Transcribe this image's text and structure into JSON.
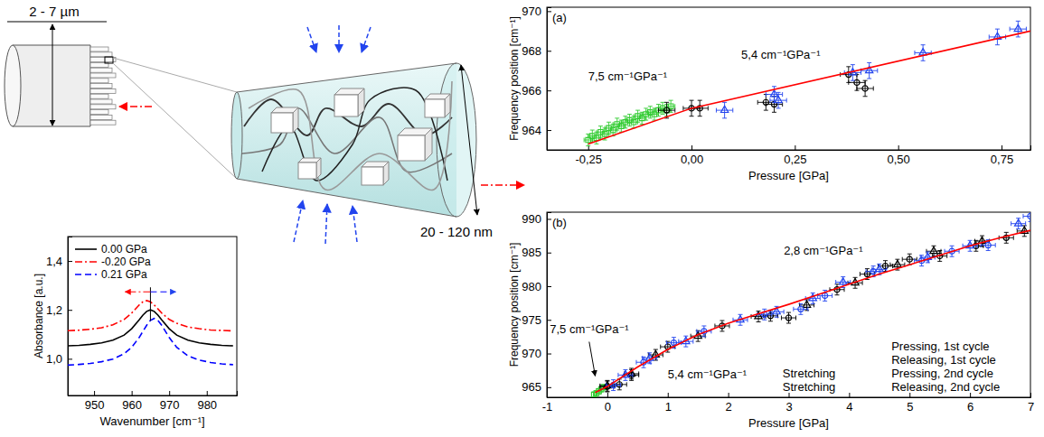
{
  "diagram": {
    "labels": [
      "2 - 7 µm",
      "20 - 120 nm"
    ]
  },
  "chart_data": [
    {
      "type": "line",
      "x_label": "Wavenumber [cm⁻¹]",
      "y_label": "Absorbance [a.u.]",
      "x": [
        943,
        946,
        949,
        952,
        955,
        958,
        960,
        962,
        963,
        964,
        965,
        966,
        967,
        968,
        970,
        972,
        975,
        978,
        981,
        984,
        987
      ],
      "xlim": [
        943,
        988
      ],
      "ylim": [
        0.85,
        1.5
      ],
      "xticks": [
        950,
        960,
        970,
        980
      ],
      "yticks": [
        {
          "value": 1.0,
          "label": "1,0"
        },
        {
          "value": 1.2,
          "label": "1,2"
        },
        {
          "value": 1.4,
          "label": "1,4"
        }
      ],
      "legend": "upper left",
      "grid": false,
      "series": [
        {
          "name": "0.00 GPa",
          "color": "#000000",
          "line_style": "solid",
          "values": [
            1.053,
            1.055,
            1.059,
            1.065,
            1.076,
            1.097,
            1.123,
            1.159,
            1.179,
            1.194,
            1.2,
            1.194,
            1.179,
            1.159,
            1.123,
            1.097,
            1.076,
            1.065,
            1.059,
            1.055,
            1.053
          ]
        },
        {
          "name": "-0.20 GPa",
          "color": "#ff0000",
          "line_style": "dashdot",
          "values": [
            1.115,
            1.117,
            1.121,
            1.127,
            1.139,
            1.161,
            1.187,
            1.22,
            1.233,
            1.238,
            1.233,
            1.22,
            1.204,
            1.187,
            1.161,
            1.145,
            1.13,
            1.123,
            1.118,
            1.116,
            1.114
          ]
        },
        {
          "name": "0.21 GPa",
          "color": "#0000ff",
          "line_style": "dashed",
          "values": [
            0.974,
            0.977,
            0.981,
            0.988,
            0.999,
            1.021,
            1.047,
            1.087,
            1.112,
            1.137,
            1.157,
            1.165,
            1.157,
            1.137,
            1.087,
            1.047,
            1.012,
            0.995,
            0.985,
            0.979,
            0.976
          ]
        }
      ]
    },
    {
      "type": "scatter",
      "title": "(a)",
      "x_label": "Pressure [GPa]",
      "y_label": "Frequency position [cm⁻¹]",
      "xlim": [
        -0.35,
        0.82
      ],
      "ylim": [
        963,
        970.2
      ],
      "xticks": [
        {
          "value": -0.25,
          "label": "-0,25"
        },
        {
          "value": 0,
          "label": "0,00"
        },
        {
          "value": 0.25,
          "label": "0,25"
        },
        {
          "value": 0.5,
          "label": "0,50"
        },
        {
          "value": 0.75,
          "label": "0,75"
        }
      ],
      "yticks": [
        964,
        966,
        968,
        970
      ],
      "grid": false,
      "annotations": [
        "7,5 cm⁻¹GPa⁻¹",
        "5,4 cm⁻¹GPa⁻¹"
      ],
      "series": [
        {
          "type": "scatter",
          "color": "#33cc33",
          "marker": "square",
          "x": [
            -0.25,
            -0.24,
            -0.23,
            -0.22,
            -0.21,
            -0.2,
            -0.19,
            -0.18,
            -0.17,
            -0.16,
            -0.15,
            -0.14,
            -0.13,
            -0.12,
            -0.11,
            -0.1,
            -0.09,
            -0.08,
            -0.07,
            -0.06,
            -0.05
          ],
          "values": [
            963.5,
            963.7,
            963.6,
            963.9,
            963.8,
            964.1,
            964.0,
            964.3,
            964.2,
            964.4,
            964.5,
            964.4,
            964.7,
            964.6,
            964.8,
            964.9,
            964.8,
            965.0,
            965.1,
            965.0,
            965.2
          ],
          "errors": [
            0.3,
            0.3,
            0.3,
            0.3,
            0.3,
            0.3,
            0.3,
            0.3,
            0.3,
            0.3,
            0.3,
            0.3,
            0.3,
            0.3,
            0.3,
            0.3,
            0.3,
            0.3,
            0.3,
            0.3,
            0.3
          ],
          "x_errors": [
            0.01,
            0.01,
            0.01,
            0.01,
            0.01,
            0.01,
            0.01,
            0.01,
            0.01,
            0.01,
            0.01,
            0.01,
            0.01,
            0.01,
            0.01,
            0.01,
            0.01,
            0.01,
            0.01,
            0.01,
            0.01
          ]
        },
        {
          "type": "scatter",
          "color": "#000000",
          "marker": "circle",
          "x": [
            -0.06,
            0.0,
            0.02,
            0.18,
            0.2,
            0.38,
            0.4,
            0.42
          ],
          "values": [
            965.0,
            965.1,
            965.1,
            965.4,
            965.3,
            966.8,
            966.4,
            966.1
          ],
          "errors": [
            0.4,
            0.4,
            0.4,
            0.4,
            0.4,
            0.4,
            0.4,
            0.4
          ],
          "x_errors": [
            0.02,
            0.02,
            0.02,
            0.02,
            0.02,
            0.02,
            0.02,
            0.02
          ]
        },
        {
          "type": "scatter",
          "color": "#2244ee",
          "marker": "triangle",
          "x": [
            0.08,
            0.2,
            0.21,
            0.39,
            0.43,
            0.56,
            0.74,
            0.79
          ],
          "values": [
            965.0,
            965.8,
            965.5,
            966.9,
            967.0,
            967.9,
            968.7,
            969.1
          ],
          "errors": [
            0.4,
            0.4,
            0.4,
            0.4,
            0.4,
            0.4,
            0.4,
            0.4
          ],
          "x_errors": [
            0.02,
            0.02,
            0.02,
            0.02,
            0.02,
            0.02,
            0.02,
            0.02
          ]
        },
        {
          "type": "line",
          "color": "#ff0000",
          "line_style": "solid",
          "x": [
            -0.25,
            0,
            0.82
          ],
          "values": [
            963.3,
            965.1,
            969.0
          ]
        }
      ]
    },
    {
      "type": "scatter",
      "title": "(b)",
      "x_label": "Pressure [GPa]",
      "y_label": "Frequency position [cm⁻¹]",
      "xlim": [
        -1,
        7
      ],
      "ylim": [
        963.5,
        991
      ],
      "xticks": [
        -1,
        0,
        1,
        2,
        3,
        4,
        5,
        6,
        7
      ],
      "yticks": [
        965,
        970,
        975,
        980,
        985,
        990
      ],
      "grid": false,
      "annotations": [
        "2,8 cm⁻¹GPa⁻¹",
        "7,5 cm⁻¹GPa⁻¹",
        "5,4 cm⁻¹GPa⁻¹",
        "Pressing, 1st cycle",
        "Releasing, 1st cycle",
        "Pressing, 2nd cycle",
        "Releasing, 2nd cycle",
        "Stretching",
        "Stretching"
      ],
      "series": [
        {
          "type": "scatter",
          "color": "#33cc33",
          "marker": "square",
          "x": [
            -0.22,
            -0.18,
            -0.14,
            -0.1,
            -0.06
          ],
          "values": [
            963.9,
            964.1,
            964.4,
            964.7,
            965.0
          ],
          "errors": [
            0.4,
            0.4,
            0.4,
            0.4,
            0.4
          ],
          "x_errors": [
            0.01,
            0.01,
            0.01,
            0.01,
            0.01
          ]
        },
        {
          "type": "scatter",
          "color": "#000000",
          "marker": "circle",
          "x": [
            0,
            0.2,
            0.4,
            1.0,
            1.9,
            2.7,
            3.0,
            3.8,
            4.3,
            4.6,
            5.0,
            5.5,
            6.1,
            6.6
          ],
          "values": [
            965.1,
            965.4,
            966.8,
            971.0,
            974.1,
            975.6,
            975.3,
            979.5,
            981.8,
            983.0,
            984.0,
            984.5,
            986.0,
            987.2
          ],
          "errors": [
            0.8,
            0.8,
            0.8,
            0.8,
            0.8,
            0.8,
            0.8,
            0.8,
            0.8,
            0.8,
            0.8,
            0.8,
            0.8,
            0.8
          ],
          "x_errors": [
            0.12,
            0.12,
            0.12,
            0.12,
            0.12,
            0.12,
            0.12,
            0.12,
            0.12,
            0.12,
            0.12,
            0.12,
            0.12,
            0.12
          ]
        },
        {
          "type": "scatter",
          "color": "#000000",
          "marker": "triangle",
          "x": [
            6.9,
            6.2,
            5.4,
            4.8,
            4.1,
            3.3,
            2.5,
            1.5,
            0.8,
            0.4,
            0.0
          ],
          "values": [
            988.2,
            986.7,
            985.2,
            983.2,
            980.5,
            977.2,
            975.5,
            972.6,
            969.8,
            967.0,
            965.2
          ],
          "errors": [
            0.8,
            0.8,
            0.8,
            0.8,
            0.8,
            0.8,
            0.8,
            0.8,
            0.8,
            0.8,
            0.8
          ],
          "x_errors": [
            0.12,
            0.12,
            0.12,
            0.12,
            0.12,
            0.12,
            0.12,
            0.12,
            0.12,
            0.12,
            0.12
          ]
        },
        {
          "type": "scatter",
          "color": "#2244ee",
          "marker": "circle",
          "x": [
            0.1,
            0.6,
            1.1,
            1.6,
            2.6,
            3.2,
            3.6,
            4.4,
            5.2,
            5.7,
            6.3,
            7.0
          ],
          "values": [
            965.3,
            968.7,
            971.6,
            973.3,
            975.8,
            976.6,
            978.6,
            982.2,
            983.8,
            985.2,
            986.1,
            990.4
          ],
          "errors": [
            0.8,
            0.8,
            0.8,
            0.8,
            0.8,
            0.8,
            0.8,
            0.8,
            0.8,
            0.8,
            0.8,
            0.8
          ],
          "x_errors": [
            0.12,
            0.12,
            0.12,
            0.12,
            0.12,
            0.12,
            0.12,
            0.12,
            0.12,
            0.12,
            0.12,
            0.12
          ]
        },
        {
          "type": "scatter",
          "color": "#2244ee",
          "marker": "triangle",
          "x": [
            6.8,
            6.0,
            5.3,
            4.5,
            3.9,
            3.4,
            2.8,
            2.2,
            1.3,
            0.7,
            0.3
          ],
          "values": [
            989.3,
            986.0,
            984.3,
            982.5,
            980.6,
            978.2,
            976.2,
            975.0,
            971.8,
            969.3,
            966.8
          ],
          "errors": [
            0.8,
            0.8,
            0.8,
            0.8,
            0.8,
            0.8,
            0.8,
            0.8,
            0.8,
            0.8,
            0.8
          ],
          "x_errors": [
            0.12,
            0.12,
            0.12,
            0.12,
            0.12,
            0.12,
            0.12,
            0.12,
            0.12,
            0.12,
            0.12
          ]
        },
        {
          "type": "line",
          "color": "#ff0000",
          "line_style": "solid",
          "x": [
            -0.2,
            0,
            0.5,
            1,
            1.5,
            2,
            2.5,
            3,
            3.5,
            4,
            4.5,
            5,
            5.5,
            6,
            6.5,
            7
          ],
          "values": [
            964.2,
            965.1,
            968.0,
            970.6,
            972.8,
            974.5,
            975.9,
            977.3,
            978.8,
            980.3,
            981.8,
            983.2,
            984.6,
            986.0,
            987.2,
            988.3
          ]
        }
      ]
    }
  ]
}
